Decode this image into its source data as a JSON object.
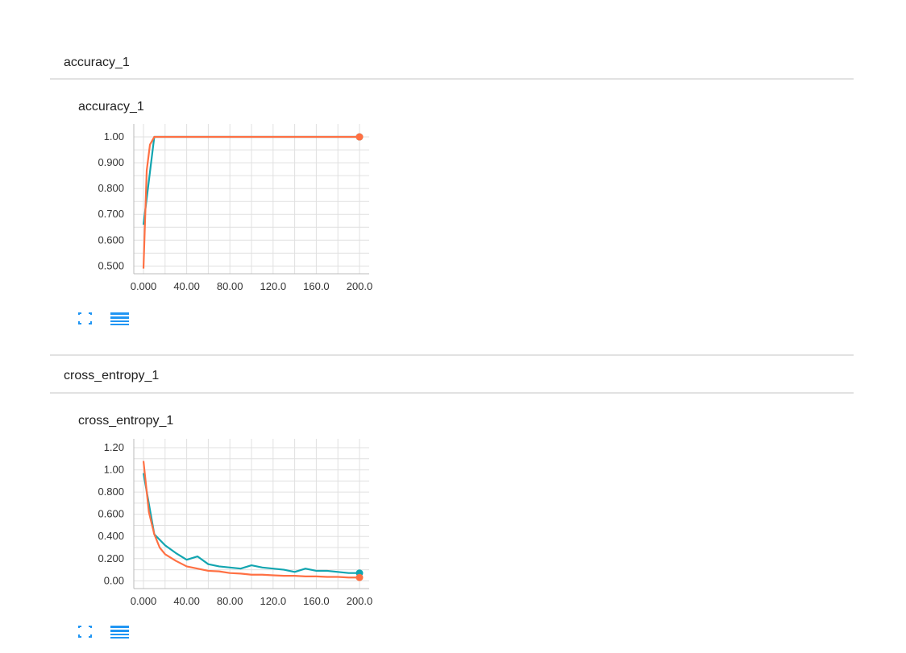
{
  "sections": [
    {
      "header": "accuracy_1",
      "card_title": "accuracy_1",
      "icons": {
        "expand": "fullscreen-icon",
        "data": "list-icon"
      }
    },
    {
      "header": "cross_entropy_1",
      "card_title": "cross_entropy_1",
      "icons": {
        "expand": "fullscreen-icon",
        "data": "list-icon"
      }
    }
  ],
  "colors": {
    "series_train": "#ff7043",
    "series_eval": "#12a5b0",
    "accent": "#2196f3",
    "grid": "#e0e0e0"
  },
  "chart_data": [
    {
      "type": "line",
      "title": "accuracy_1",
      "xlim": [
        0,
        200
      ],
      "ylim": [
        0.47,
        1.05
      ],
      "x_ticks": [
        0,
        40,
        80,
        120,
        160,
        200
      ],
      "x_tick_labels": [
        "0.000",
        "40.00",
        "80.00",
        "120.0",
        "160.0",
        "200.0"
      ],
      "y_ticks": [
        0.5,
        0.6,
        0.7,
        0.8,
        0.9,
        1.0
      ],
      "y_tick_labels": [
        "0.500",
        "0.600",
        "0.700",
        "0.800",
        "0.900",
        "1.00"
      ],
      "grid": true,
      "series": [
        {
          "color": "#12a5b0",
          "x": [
            0,
            10,
            20,
            200
          ],
          "y": [
            0.66,
            1.0,
            1.0,
            1.0
          ]
        },
        {
          "color": "#ff7043",
          "x": [
            0,
            3,
            6,
            10,
            20,
            200
          ],
          "y": [
            0.49,
            0.87,
            0.97,
            1.0,
            1.0,
            1.0
          ]
        }
      ]
    },
    {
      "type": "line",
      "title": "cross_entropy_1",
      "xlim": [
        0,
        200
      ],
      "ylim": [
        -0.07,
        1.28
      ],
      "x_ticks": [
        0,
        40,
        80,
        120,
        160,
        200
      ],
      "x_tick_labels": [
        "0.000",
        "40.00",
        "80.00",
        "120.0",
        "160.0",
        "200.0"
      ],
      "y_ticks": [
        0,
        0.2,
        0.4,
        0.6,
        0.8,
        1.0,
        1.2
      ],
      "y_tick_labels": [
        "0.00",
        "0.200",
        "0.400",
        "0.600",
        "0.800",
        "1.00",
        "1.20"
      ],
      "grid": true,
      "series": [
        {
          "color": "#12a5b0",
          "x": [
            0,
            10,
            20,
            30,
            40,
            50,
            60,
            70,
            80,
            90,
            100,
            110,
            120,
            130,
            140,
            150,
            160,
            170,
            180,
            190,
            200
          ],
          "y": [
            0.97,
            0.42,
            0.32,
            0.25,
            0.19,
            0.22,
            0.15,
            0.13,
            0.12,
            0.11,
            0.14,
            0.12,
            0.11,
            0.1,
            0.08,
            0.11,
            0.09,
            0.09,
            0.08,
            0.07,
            0.07
          ]
        },
        {
          "color": "#ff7043",
          "x": [
            0,
            5,
            10,
            15,
            20,
            30,
            40,
            50,
            60,
            70,
            80,
            90,
            100,
            110,
            120,
            130,
            140,
            150,
            160,
            170,
            180,
            190,
            200
          ],
          "y": [
            1.08,
            0.62,
            0.42,
            0.3,
            0.24,
            0.18,
            0.13,
            0.11,
            0.09,
            0.085,
            0.07,
            0.065,
            0.055,
            0.055,
            0.05,
            0.045,
            0.045,
            0.04,
            0.04,
            0.035,
            0.035,
            0.03,
            0.03
          ]
        }
      ]
    }
  ]
}
